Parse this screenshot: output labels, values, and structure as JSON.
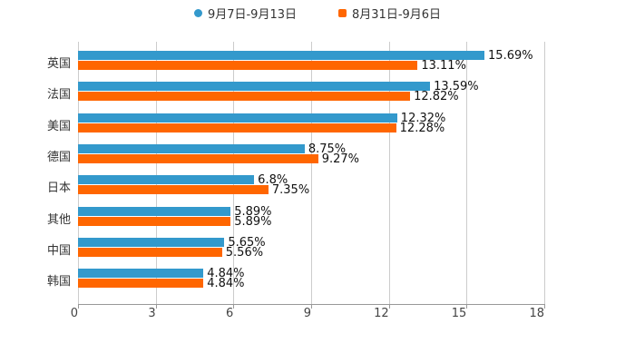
{
  "chart_data": {
    "type": "bar",
    "orientation": "horizontal",
    "title": "",
    "xlabel": "",
    "ylabel": "",
    "xlim": [
      0,
      18
    ],
    "x_ticks": [
      "0",
      "3",
      "6",
      "9",
      "12",
      "15",
      "18"
    ],
    "grid": true,
    "legend_position": "top",
    "categories": [
      "英国",
      "法国",
      "美国",
      "德国",
      "日本",
      "其他",
      "中国",
      "韩国"
    ],
    "series": [
      {
        "name": "9月7日-9月13日",
        "color": "#3399cc",
        "values": [
          15.69,
          13.59,
          12.32,
          8.75,
          6.8,
          5.89,
          5.65,
          4.84
        ],
        "labels": [
          "15.69%",
          "13.59%",
          "12.32%",
          "8.75%",
          "6.8%",
          "5.89%",
          "5.65%",
          "4.84%"
        ]
      },
      {
        "name": "8月31日-9月6日",
        "color": "#ff6600",
        "values": [
          13.11,
          12.82,
          12.28,
          9.27,
          7.35,
          5.89,
          5.56,
          4.84
        ],
        "labels": [
          "13.11%",
          "12.82%",
          "12.28%",
          "9.27%",
          "7.35%",
          "5.89%",
          "5.56%",
          "4.84%"
        ]
      }
    ]
  }
}
